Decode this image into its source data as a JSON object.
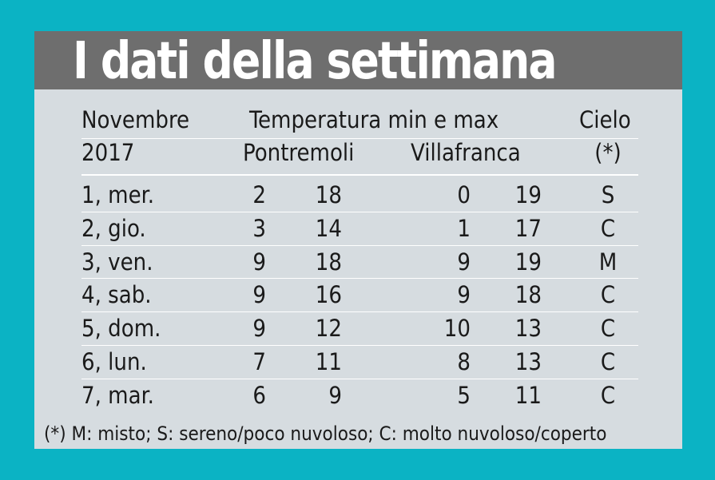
{
  "title": "I dati della settimana",
  "header": {
    "col_month": "Novembre",
    "col_year": "2017",
    "col_temp": "Temperatura min e max",
    "col_loc1": "Pontremoli",
    "col_loc2": "Villafranca",
    "col_sky": "Cielo",
    "col_sky_note": "(*)"
  },
  "rows": [
    {
      "day": "1, mer.",
      "p_min": "2",
      "p_max": "18",
      "v_min": "0",
      "v_max": "19",
      "sky": "S"
    },
    {
      "day": "2, gio.",
      "p_min": "3",
      "p_max": "14",
      "v_min": "1",
      "v_max": "17",
      "sky": "C"
    },
    {
      "day": "3, ven.",
      "p_min": "9",
      "p_max": "18",
      "v_min": "9",
      "v_max": "19",
      "sky": "M"
    },
    {
      "day": "4, sab.",
      "p_min": "9",
      "p_max": "16",
      "v_min": "9",
      "v_max": "18",
      "sky": "C"
    },
    {
      "day": "5, dom.",
      "p_min": "9",
      "p_max": "12",
      "v_min": "10",
      "v_max": "13",
      "sky": "C"
    },
    {
      "day": "6, lun.",
      "p_min": "7",
      "p_max": "11",
      "v_min": "8",
      "v_max": "13",
      "sky": "C"
    },
    {
      "day": "7, mar.",
      "p_min": "6",
      "p_max": "9",
      "v_min": "5",
      "v_max": "11",
      "sky": "C"
    }
  ],
  "footnote": "(*) M: misto; S: sereno/poco nuvoloso; C: molto nuvoloso/coperto"
}
